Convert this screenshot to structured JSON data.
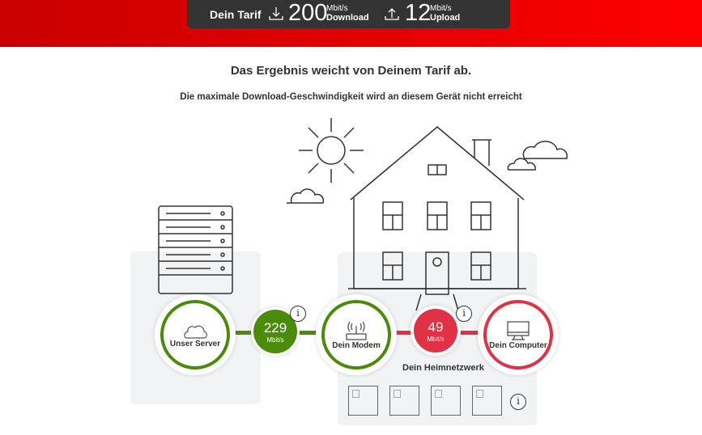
{
  "tarif": {
    "label": "Dein Tarif",
    "download": {
      "value": "200",
      "unit": "Mbit/s",
      "label": "Download",
      "icon": "download-icon"
    },
    "upload": {
      "value": "12",
      "unit": "Mbit/s",
      "label": "Upload",
      "icon": "upload-icon"
    }
  },
  "result": {
    "title": "Das Ergebnis weicht von Deinem Tarif ab.",
    "subtitle": "Die maximale Download-Geschwindigkeit wird an diesem Gerät nicht erreicht"
  },
  "nodes": {
    "server": "Unser Server",
    "modem": "Dein Modem",
    "computer": "Dein Computer"
  },
  "speeds": {
    "server_modem": {
      "value": "229",
      "unit": "Mbit/s",
      "color": "#4a8c0a"
    },
    "modem_computer": {
      "value": "49",
      "unit": "Mbit/s",
      "color": "#e03145"
    }
  },
  "home_network": {
    "label": "Dein Heimnetzwerk",
    "device_count": 4
  },
  "colors": {
    "brand": "#e60000",
    "ok": "#4a8c0a",
    "bad": "#e03145"
  }
}
